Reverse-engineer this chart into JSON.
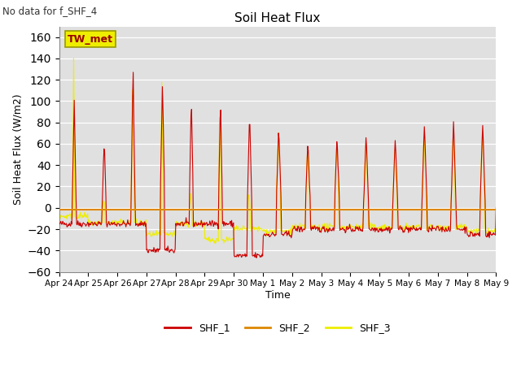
{
  "title": "Soil Heat Flux",
  "no_data_text": "No data for f_SHF_4",
  "ylabel": "Soil Heat Flux (W/m2)",
  "xlabel": "Time",
  "ylim": [
    -60,
    170
  ],
  "yticks": [
    -60,
    -40,
    -20,
    0,
    20,
    40,
    60,
    80,
    100,
    120,
    140,
    160
  ],
  "bg_color": "#e0e0e0",
  "legend_entries": [
    "SHF_1",
    "SHF_2",
    "SHF_3"
  ],
  "colors": {
    "SHF_1": "#cc0000",
    "SHF_2": "#dd8800",
    "SHF_3": "#eeee00"
  },
  "box_label": "TW_met",
  "box_bg": "#eeee00",
  "box_edge": "#999900",
  "box_text_color": "#990000",
  "date_labels": [
    "Apr 24",
    "Apr 25",
    "Apr 26",
    "Apr 27",
    "Apr 28",
    "Apr 29",
    "Apr 30",
    "May 1",
    "May 2",
    "May 3",
    "May 4",
    "May 5",
    "May 6",
    "May 7",
    "May 8",
    "May 9"
  ]
}
